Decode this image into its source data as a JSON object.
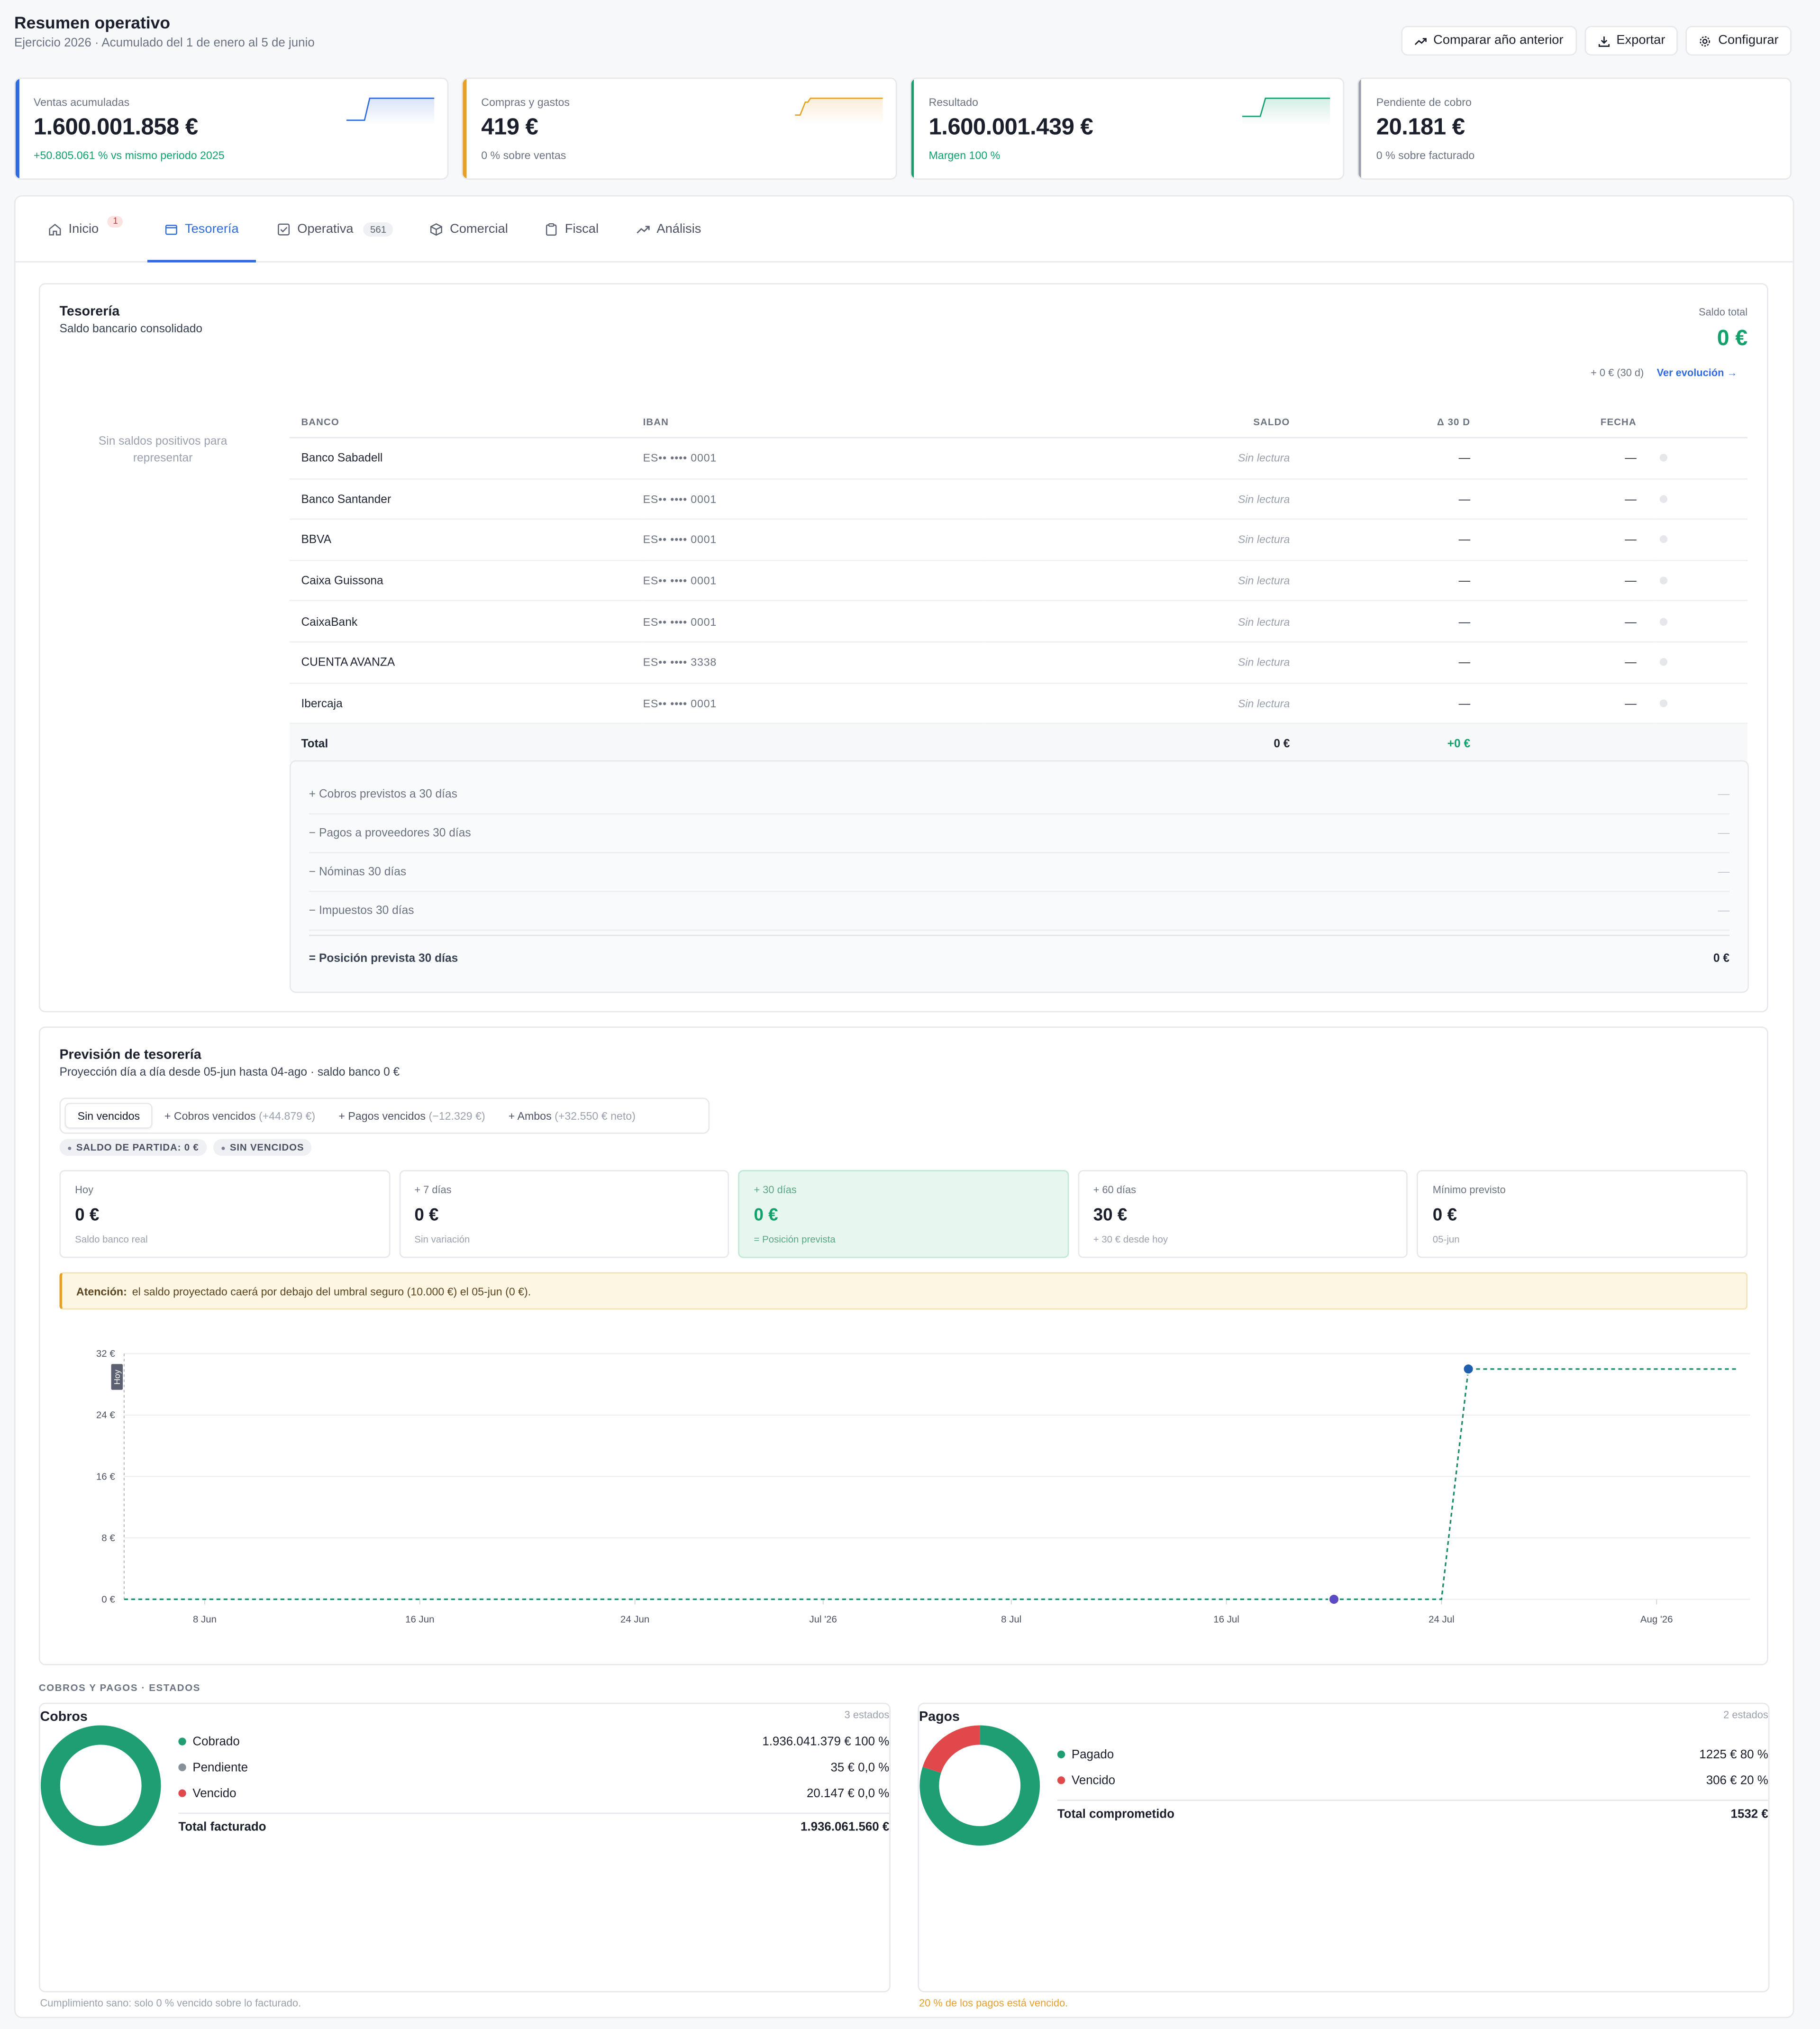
{
  "header": {
    "title": "Resumen operativo",
    "subtitle": "Ejercicio 2026 · Acumulado del 1 de enero al 5 de junio",
    "actions": {
      "compare": "Comparar año anterior",
      "export": "Exportar",
      "settings": "Configurar"
    }
  },
  "kpis": [
    {
      "label": "Ventas acumuladas",
      "value": "1.600.001.858 €",
      "note": "+50.805.061 % vs mismo periodo 2025",
      "color": "#2f6bdc",
      "note_color": "green"
    },
    {
      "label": "Compras y gastos",
      "value": "419 €",
      "note": "0 % sobre ventas",
      "color": "#e6a028",
      "note_color": "muted"
    },
    {
      "label": "Resultado",
      "value": "1.600.001.439 €",
      "note": "Margen 100 %",
      "color": "#12a06b",
      "note_color": "green"
    },
    {
      "label": "Pendiente de cobro",
      "value": "20.181 €",
      "note": "0 % sobre facturado",
      "color": "#9aa1ad",
      "note_color": "muted"
    }
  ],
  "tabs": [
    {
      "label": "Inicio",
      "badge": "1",
      "icon": "home-icon"
    },
    {
      "label": "Tesorería",
      "icon": "wallet-icon",
      "active": true
    },
    {
      "label": "Operativa",
      "badge": "561",
      "icon": "checklist-icon"
    },
    {
      "label": "Comercial",
      "icon": "box-icon"
    },
    {
      "label": "Fiscal",
      "icon": "clipboard-icon"
    },
    {
      "label": "Análisis",
      "icon": "trend-icon"
    }
  ],
  "tesoreria": {
    "title": "Tesorería",
    "subtitle": "Saldo bancario consolidado",
    "saldo_label": "Saldo total",
    "saldo_value": "0 €",
    "saldo_delta": "+ 0 € (30 d)",
    "ver_evolucion": "Ver evolución →",
    "empty_note": "Sin saldos positivos para representar",
    "columns": {
      "banco": "BANCO",
      "iban": "IBAN",
      "saldo": "SALDO",
      "delta": "Δ 30 D",
      "fecha": "FECHA"
    },
    "banks": [
      {
        "name": "Banco Sabadell",
        "iban": "ES•• •••• 0001",
        "saldo": "Sin lectura",
        "delta": "—",
        "fecha": "—"
      },
      {
        "name": "Banco Santander",
        "iban": "ES•• •••• 0001",
        "saldo": "Sin lectura",
        "delta": "—",
        "fecha": "—"
      },
      {
        "name": "BBVA",
        "iban": "ES•• •••• 0001",
        "saldo": "Sin lectura",
        "delta": "—",
        "fecha": "—"
      },
      {
        "name": "Caixa Guissona",
        "iban": "ES•• •••• 0001",
        "saldo": "Sin lectura",
        "delta": "—",
        "fecha": "—"
      },
      {
        "name": "CaixaBank",
        "iban": "ES•• •••• 0001",
        "saldo": "Sin lectura",
        "delta": "—",
        "fecha": "—"
      },
      {
        "name": "CUENTA AVANZA",
        "iban": "ES•• •••• 3338",
        "saldo": "Sin lectura",
        "delta": "—",
        "fecha": "—"
      },
      {
        "name": "Ibercaja",
        "iban": "ES•• •••• 0001",
        "saldo": "Sin lectura",
        "delta": "—",
        "fecha": "—"
      }
    ],
    "total": {
      "label": "Total",
      "saldo": "0 €",
      "delta": "+0 €"
    },
    "projection": [
      {
        "label": "+ Cobros previstos a 30 días",
        "value": "—"
      },
      {
        "label": "− Pagos a proveedores 30 días",
        "value": "—"
      },
      {
        "label": "− Nóminas 30 días",
        "value": "—"
      },
      {
        "label": "− Impuestos 30 días",
        "value": "—"
      }
    ],
    "projection_final": {
      "label": "= Posición prevista 30 días",
      "value": "0 €"
    }
  },
  "prevision": {
    "title": "Previsión de tesorería",
    "subtitle": "Proyección día a día desde 05-jun hasta 04-ago · saldo banco 0 €",
    "segments": [
      {
        "label": "Sin vencidos",
        "extra": "",
        "active": true
      },
      {
        "label": "+ Cobros vencidos",
        "extra": "(+44.879 €)"
      },
      {
        "label": "+ Pagos vencidos",
        "extra": "(−12.329 €)"
      },
      {
        "label": "+ Ambos",
        "extra": "(+32.550 € neto)"
      }
    ],
    "chips": [
      "SALDO DE PARTIDA: 0 €",
      "SIN VENCIDOS"
    ],
    "stats": [
      {
        "label": "Hoy",
        "value": "0 €",
        "note": "Saldo banco real"
      },
      {
        "label": "+ 7 días",
        "value": "0 €",
        "note": "Sin variación"
      },
      {
        "label": "+ 30 días",
        "value": "0 €",
        "note": "= Posición prevista",
        "highlight": true
      },
      {
        "label": "+ 60 días",
        "value": "30 €",
        "note": "+ 30 € desde hoy"
      },
      {
        "label": "Mínimo previsto",
        "value": "0 €",
        "note": "05-jun"
      }
    ],
    "alert_strong": "Atención:",
    "alert_text": "el saldo proyectado caerá por debajo del umbral seguro (10.000 €) el 05-jun (0 €).",
    "today_label": "Hoy"
  },
  "chart_data": {
    "type": "line",
    "title": "",
    "xlabel": "",
    "ylabel": "",
    "ylim": [
      0,
      32
    ],
    "yticks": [
      "0 €",
      "8 €",
      "16 €",
      "24 €",
      "32 €"
    ],
    "ytick_values": [
      0,
      8,
      16,
      24,
      32
    ],
    "xticks": [
      "8 Jun",
      "16 Jun",
      "24 Jun",
      "Jul '26",
      "8 Jul",
      "16 Jul",
      "24 Jul",
      "Aug '26"
    ],
    "xtick_days": [
      3,
      11,
      19,
      26,
      33,
      41,
      49,
      57
    ],
    "x_range_days": [
      0,
      60
    ],
    "series": [
      {
        "name": "",
        "points": [
          [
            0,
            0
          ],
          [
            49,
            0
          ],
          [
            50,
            30
          ],
          [
            60,
            30
          ]
        ],
        "style": "dashed",
        "color": "#1a8a6a"
      }
    ],
    "markers": [
      {
        "day": 45,
        "value": 0,
        "color": "#5b4bc4"
      },
      {
        "day": 50,
        "value": 30,
        "color": "#1f5fae"
      }
    ],
    "today_day": 0,
    "grid": true
  },
  "cobros_pagos": {
    "section": "COBROS Y PAGOS · ESTADOS",
    "cobros": {
      "title": "Cobros",
      "count": "3 estados",
      "items": [
        {
          "name": "Cobrado",
          "value": "1.936.041.379 € 100 %",
          "color": "#1e9e72",
          "share": 100
        },
        {
          "name": "Pendiente",
          "value": "35 € 0,0 %",
          "color": "#8b8f98",
          "share": 0
        },
        {
          "name": "Vencido",
          "value": "20.147 € 0,0 %",
          "color": "#e0484b",
          "share": 0
        }
      ],
      "total_label": "Total facturado",
      "total_value": "1.936.061.560 €",
      "footer": "Cumplimiento sano: solo 0 % vencido sobre lo facturado."
    },
    "pagos": {
      "title": "Pagos",
      "count": "2 estados",
      "items": [
        {
          "name": "Pagado",
          "value": "1225 € 80 %",
          "color": "#1e9e72",
          "share": 80
        },
        {
          "name": "Vencido",
          "value": "306 € 20 %",
          "color": "#e0484b",
          "share": 20
        }
      ],
      "total_label": "Total comprometido",
      "total_value": "1532 €",
      "footer": "20 % de los pagos está vencido."
    }
  }
}
